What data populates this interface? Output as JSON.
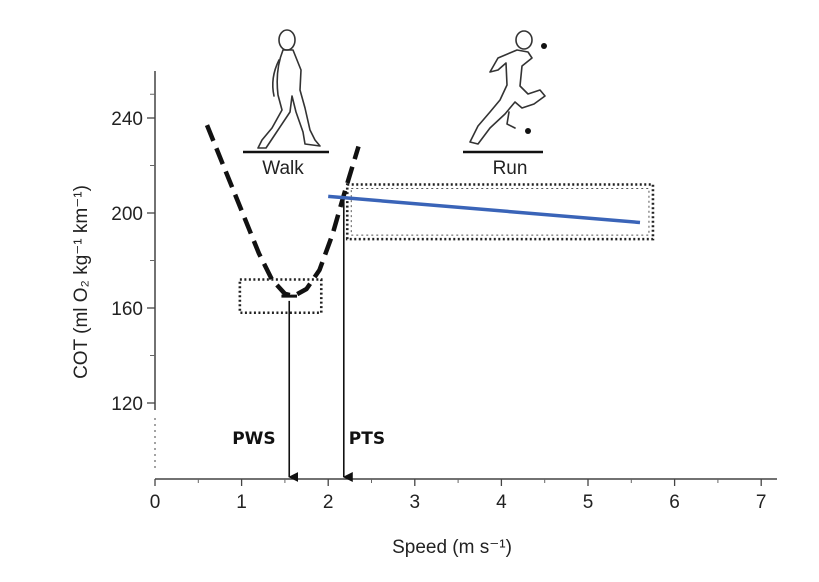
{
  "chart_data": {
    "type": "line",
    "xlabel": "Speed  (m s⁻¹)",
    "ylabel": "COT (ml O₂ kg⁻¹ km⁻¹)",
    "xlim": [
      0,
      7
    ],
    "ylim": [
      105,
      255
    ],
    "x_ticks": [
      0,
      1,
      2,
      3,
      4,
      5,
      6,
      7
    ],
    "y_ticks": [
      120,
      160,
      200,
      240
    ],
    "grid": false,
    "legend": "none",
    "series": [
      {
        "style": "dashed",
        "color": "#111111",
        "points": [
          [
            0.6,
            237
          ],
          [
            0.8,
            219
          ],
          [
            1.0,
            201
          ],
          [
            1.2,
            183
          ],
          [
            1.35,
            172
          ],
          [
            1.5,
            166
          ],
          [
            1.6,
            165
          ],
          [
            1.75,
            168
          ],
          [
            1.9,
            176
          ],
          [
            2.05,
            191
          ],
          [
            2.2,
            210
          ],
          [
            2.35,
            228
          ]
        ]
      },
      {
        "style": "solid",
        "color": "#3a64b8",
        "points": [
          [
            2.0,
            207
          ],
          [
            5.6,
            196
          ]
        ]
      }
    ],
    "boxes": [
      {
        "x": [
          0.98,
          1.92
        ],
        "y": [
          158,
          172
        ]
      },
      {
        "x": [
          2.22,
          5.75
        ],
        "y": [
          189,
          212
        ]
      }
    ],
    "annotations": [
      {
        "text": "PWS",
        "x": 1.55
      },
      {
        "text": "PTS",
        "x": 2.18
      }
    ],
    "gait_labels": [
      {
        "text": "Walk",
        "icon": "walking-figure-icon"
      },
      {
        "text": "Run",
        "icon": "running-figure-icon"
      }
    ]
  }
}
